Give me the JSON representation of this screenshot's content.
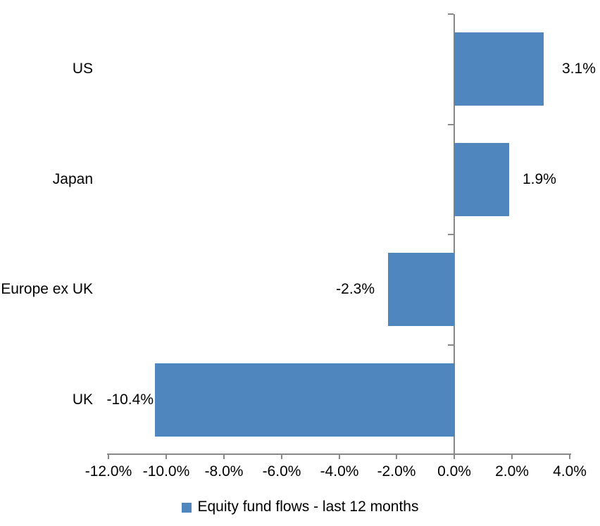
{
  "chart_data": {
    "type": "bar",
    "orientation": "horizontal",
    "title": "",
    "categories": [
      "US",
      "Japan",
      "Europe ex UK",
      "UK"
    ],
    "series": [
      {
        "name": "Equity fund flows - last 12 months",
        "values": [
          3.1,
          1.9,
          -2.3,
          -10.4
        ],
        "data_labels": [
          "3.1%",
          "1.9%",
          "-2.3%",
          "-10.4%"
        ],
        "color": "#4F86BD"
      }
    ],
    "xlim": [
      -12,
      4
    ],
    "x_tick_values": [
      -12,
      -10,
      -8,
      -6,
      -4,
      -2,
      0,
      2,
      4
    ],
    "x_tick_labels": [
      "-12.0%",
      "-10.0%",
      "-8.0%",
      "-6.0%",
      "-4.0%",
      "-2.0%",
      "0.0%",
      "2.0%",
      "4.0%"
    ],
    "grid": false,
    "legend_position": "bottom",
    "axis_color": "#898989",
    "text_color": "#000000",
    "background": "#FFFFFF"
  },
  "legend": {
    "label": "Equity fund flows - last 12 months",
    "swatch_color": "#4F86BD"
  }
}
